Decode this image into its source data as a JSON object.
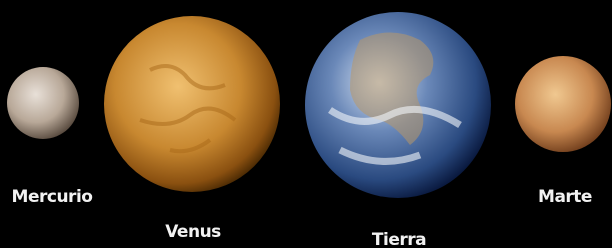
{
  "planets": [
    {
      "label": "Mercurio"
    },
    {
      "label": "Venus"
    },
    {
      "label": "Tierra"
    },
    {
      "label": "Marte"
    }
  ]
}
